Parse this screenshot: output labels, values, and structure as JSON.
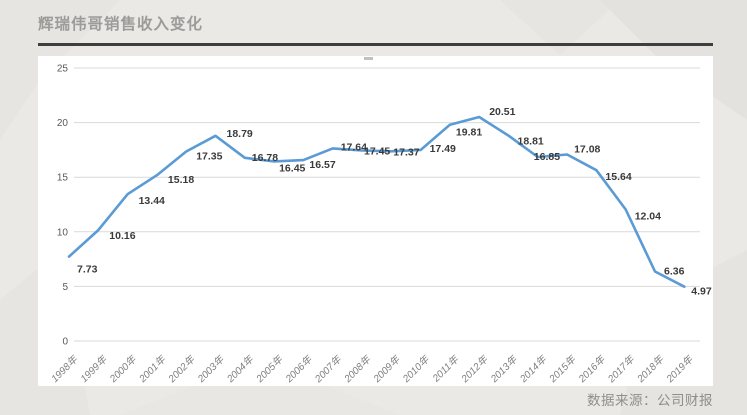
{
  "page": {
    "title": "辉瑞伟哥销售收入变化",
    "source_note": "数据来源：公司财报"
  },
  "chart_data": {
    "type": "line",
    "title": "辉瑞伟哥销售收入变化",
    "categories": [
      "1998年",
      "1999年",
      "2000年",
      "2001年",
      "2002年",
      "2003年",
      "2004年",
      "2005年",
      "2006年",
      "2007年",
      "2008年",
      "2009年",
      "2010年",
      "2011年",
      "2012年",
      "2013年",
      "2014年",
      "2015年",
      "2016年",
      "2017年",
      "2018年",
      "2019年"
    ],
    "values": [
      7.73,
      10.16,
      13.44,
      15.18,
      17.35,
      18.79,
      16.78,
      16.45,
      16.57,
      17.64,
      17.45,
      17.37,
      17.49,
      19.81,
      20.51,
      18.81,
      16.85,
      17.08,
      15.64,
      12.04,
      6.36,
      4.97
    ],
    "xlabel": "",
    "ylabel": "",
    "ylim": [
      0,
      25
    ],
    "yticks": [
      0,
      5,
      10,
      15,
      20,
      25
    ],
    "grid": true,
    "legend": false,
    "data_labels": true,
    "line_color": "#5B9BD5",
    "data_label_color": "#3a3a3a",
    "ytick_color": "#595959",
    "xtick_color": "#7f7f7f",
    "grid_color": "#d9d9d9",
    "background": "#ffffff"
  }
}
